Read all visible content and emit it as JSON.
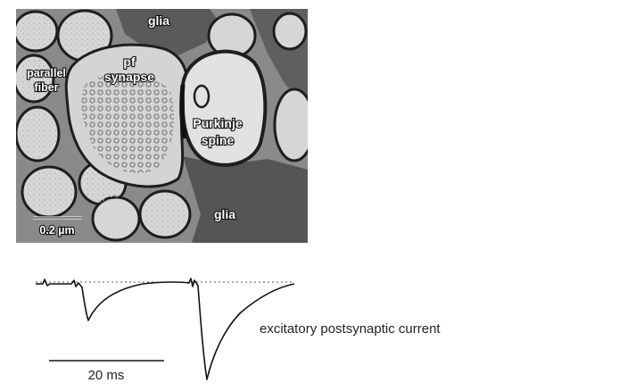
{
  "micrograph": {
    "labels": {
      "glia_top": "glia",
      "parallel_fiber_line1": "parallel",
      "parallel_fiber_line2": "fiber",
      "pf_synapse_line1": "pf",
      "pf_synapse_line2": "synapse",
      "purkinje_spine_line1": "Purkinje",
      "purkinje_spine_line2": "spine",
      "glia_bottom": "glia"
    },
    "scale_bar_label": "0.2 µm"
  },
  "trace": {
    "caption": "excitatory postsynaptic current",
    "time_scale_label": "20 ms"
  },
  "colors": {
    "background": "#ffffff",
    "em_base": "#8a8a8a",
    "cytoplasm": "#d9d9d9",
    "membrane": "#1e1e1e",
    "glia": "#555555",
    "trace": "#111111"
  }
}
